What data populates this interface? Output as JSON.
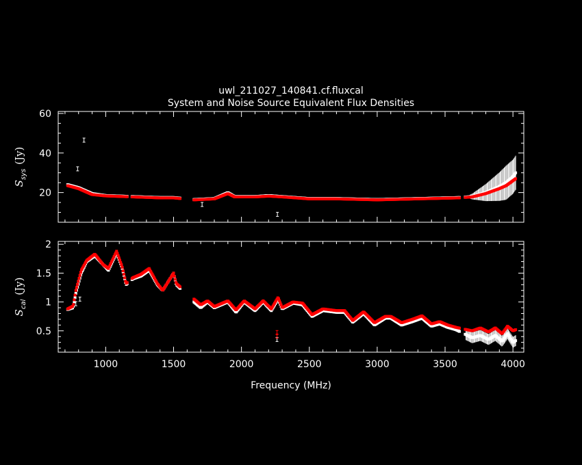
{
  "title": "uwl_211027_140841.cf.fluxcal",
  "subtitle": "System and Noise Source Equivalent Flux Densities",
  "colors": {
    "background": "#000000",
    "frame": "#ffffff",
    "series_a": "#ffffff",
    "series_b": "#ff0000"
  },
  "chart_data": [
    {
      "type": "scatter",
      "ylabel_main": "S",
      "ylabel_sub": "sys",
      "ylabel_unit": "(Jy)",
      "xlim": [
        650,
        4080
      ],
      "ylim": [
        5,
        61
      ],
      "xticks": [
        1000,
        1500,
        2000,
        2500,
        3000,
        3500,
        4000
      ],
      "yticks": [
        20,
        40,
        60
      ],
      "yticklabels": [
        "20",
        "40",
        "60"
      ],
      "series": [
        {
          "color": "#ffffff",
          "profile": [
            [
              720,
              24
            ],
            [
              800,
              22.5
            ],
            [
              900,
              19.5
            ],
            [
              1000,
              18.5
            ],
            [
              1200,
              18
            ],
            [
              1400,
              17.5
            ],
            [
              1500,
              17.5
            ],
            [
              1650,
              16.5
            ],
            [
              1800,
              17
            ],
            [
              1900,
              20
            ],
            [
              1950,
              18
            ],
            [
              2100,
              18
            ],
            [
              2200,
              18.5
            ],
            [
              2300,
              18
            ],
            [
              2500,
              17
            ],
            [
              2700,
              17
            ],
            [
              3000,
              16.5
            ],
            [
              3300,
              17
            ],
            [
              3600,
              17.5
            ],
            [
              3700,
              18
            ],
            [
              3800,
              20
            ],
            [
              3900,
              23
            ],
            [
              3950,
              25
            ],
            [
              4000,
              28
            ],
            [
              4020,
              30
            ]
          ],
          "outliers": [
            [
              793,
              32
            ],
            [
              840,
              46.5
            ],
            [
              1710,
              14
            ],
            [
              2265,
              9
            ]
          ]
        },
        {
          "color": "#ff0000",
          "profile": [
            [
              720,
              23.5
            ],
            [
              800,
              22
            ],
            [
              900,
              19
            ],
            [
              1000,
              18.3
            ],
            [
              1200,
              17.8
            ],
            [
              1400,
              17.3
            ],
            [
              1500,
              17.3
            ],
            [
              1650,
              16.3
            ],
            [
              1800,
              16.8
            ],
            [
              1900,
              19.5
            ],
            [
              1950,
              17.8
            ],
            [
              2100,
              17.8
            ],
            [
              2200,
              18.2
            ],
            [
              2300,
              17.8
            ],
            [
              2500,
              16.8
            ],
            [
              2700,
              16.8
            ],
            [
              3000,
              16.3
            ],
            [
              3300,
              16.8
            ],
            [
              3600,
              17.3
            ],
            [
              3700,
              17.8
            ],
            [
              3800,
              19.5
            ],
            [
              3900,
              22
            ],
            [
              3950,
              23.5
            ],
            [
              4000,
              26
            ],
            [
              4020,
              27
            ]
          ],
          "outliers": []
        }
      ]
    },
    {
      "type": "scatter",
      "xlabel": "Frequency (MHz)",
      "ylabel_main": "S",
      "ylabel_sub": "cal",
      "ylabel_unit": "(Jy)",
      "xlim": [
        650,
        4080
      ],
      "ylim": [
        0.13,
        2.05
      ],
      "xticks": [
        1000,
        1500,
        2000,
        2500,
        3000,
        3500,
        4000
      ],
      "xticklabels": [
        "1000",
        "1500",
        "2000",
        "2500",
        "3000",
        "3500",
        "4000"
      ],
      "yticks": [
        0.5,
        1,
        1.5,
        2
      ],
      "yticklabels": [
        "0.5",
        "1",
        "1.5",
        "2"
      ],
      "series": [
        {
          "color": "#ffffff",
          "profile": [
            [
              720,
              0.87
            ],
            [
              760,
              0.9
            ],
            [
              780,
              1.15
            ],
            [
              820,
              1.5
            ],
            [
              860,
              1.7
            ],
            [
              920,
              1.8
            ],
            [
              980,
              1.65
            ],
            [
              1020,
              1.55
            ],
            [
              1080,
              1.85
            ],
            [
              1120,
              1.6
            ],
            [
              1150,
              1.3
            ],
            [
              1200,
              1.4
            ],
            [
              1260,
              1.45
            ],
            [
              1320,
              1.55
            ],
            [
              1380,
              1.3
            ],
            [
              1420,
              1.2
            ],
            [
              1500,
              1.5
            ],
            [
              1520,
              1.3
            ],
            [
              1650,
              1.0
            ],
            [
              1700,
              0.9
            ],
            [
              1750,
              1.0
            ],
            [
              1800,
              0.9
            ],
            [
              1900,
              1.0
            ],
            [
              1960,
              0.82
            ],
            [
              2020,
              1.0
            ],
            [
              2100,
              0.85
            ],
            [
              2160,
              1.0
            ],
            [
              2220,
              0.85
            ],
            [
              2270,
              1.05
            ],
            [
              2300,
              0.88
            ],
            [
              2380,
              0.98
            ],
            [
              2450,
              0.95
            ],
            [
              2520,
              0.75
            ],
            [
              2600,
              0.85
            ],
            [
              2700,
              0.82
            ],
            [
              2760,
              0.82
            ],
            [
              2820,
              0.65
            ],
            [
              2900,
              0.8
            ],
            [
              2980,
              0.6
            ],
            [
              3060,
              0.72
            ],
            [
              3100,
              0.72
            ],
            [
              3180,
              0.6
            ],
            [
              3260,
              0.66
            ],
            [
              3330,
              0.72
            ],
            [
              3400,
              0.58
            ],
            [
              3460,
              0.62
            ],
            [
              3520,
              0.56
            ],
            [
              3580,
              0.52
            ],
            [
              3700,
              0.38
            ],
            [
              3760,
              0.42
            ],
            [
              3820,
              0.35
            ],
            [
              3870,
              0.42
            ],
            [
              3920,
              0.32
            ],
            [
              3960,
              0.45
            ],
            [
              4000,
              0.3
            ],
            [
              4020,
              0.33
            ]
          ],
          "outliers": [
            [
              810,
              1.05
            ],
            [
              780,
              0.97
            ],
            [
              2262,
              0.35
            ]
          ]
        },
        {
          "color": "#ff0000",
          "profile": [
            [
              720,
              0.88
            ],
            [
              760,
              0.93
            ],
            [
              780,
              1.2
            ],
            [
              820,
              1.55
            ],
            [
              860,
              1.72
            ],
            [
              920,
              1.83
            ],
            [
              980,
              1.65
            ],
            [
              1020,
              1.58
            ],
            [
              1080,
              1.88
            ],
            [
              1120,
              1.62
            ],
            [
              1150,
              1.32
            ],
            [
              1200,
              1.42
            ],
            [
              1260,
              1.48
            ],
            [
              1320,
              1.58
            ],
            [
              1380,
              1.32
            ],
            [
              1420,
              1.2
            ],
            [
              1500,
              1.5
            ],
            [
              1520,
              1.32
            ],
            [
              1650,
              1.05
            ],
            [
              1700,
              0.95
            ],
            [
              1750,
              1.02
            ],
            [
              1800,
              0.92
            ],
            [
              1900,
              1.02
            ],
            [
              1960,
              0.86
            ],
            [
              2020,
              1.02
            ],
            [
              2100,
              0.88
            ],
            [
              2160,
              1.02
            ],
            [
              2220,
              0.88
            ],
            [
              2270,
              1.08
            ],
            [
              2300,
              0.9
            ],
            [
              2380,
              1.0
            ],
            [
              2450,
              0.98
            ],
            [
              2520,
              0.78
            ],
            [
              2600,
              0.88
            ],
            [
              2700,
              0.85
            ],
            [
              2760,
              0.85
            ],
            [
              2820,
              0.68
            ],
            [
              2900,
              0.83
            ],
            [
              2980,
              0.64
            ],
            [
              3060,
              0.75
            ],
            [
              3100,
              0.75
            ],
            [
              3180,
              0.64
            ],
            [
              3260,
              0.7
            ],
            [
              3330,
              0.76
            ],
            [
              3400,
              0.62
            ],
            [
              3460,
              0.66
            ],
            [
              3520,
              0.6
            ],
            [
              3580,
              0.56
            ],
            [
              3700,
              0.5
            ],
            [
              3760,
              0.55
            ],
            [
              3820,
              0.48
            ],
            [
              3870,
              0.55
            ],
            [
              3920,
              0.45
            ],
            [
              3960,
              0.58
            ],
            [
              4000,
              0.5
            ],
            [
              4020,
              0.52
            ]
          ],
          "outliers": [
            [
              2262,
              0.47
            ],
            [
              2262,
              0.41
            ]
          ]
        }
      ]
    }
  ]
}
